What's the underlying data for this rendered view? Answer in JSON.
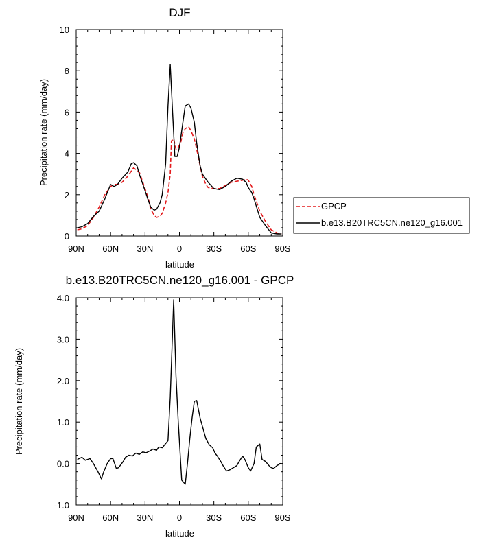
{
  "chart_data": [
    {
      "type": "line",
      "title": "DJF",
      "xlabel": "latitude",
      "ylabel": "Precipitation rate (mm/day)",
      "xlim": [
        90,
        -90
      ],
      "ylim": [
        0,
        10
      ],
      "xticks": [
        90,
        60,
        30,
        0,
        -30,
        -60,
        -90
      ],
      "xtick_labels": [
        "90N",
        "60N",
        "30N",
        "0",
        "30S",
        "60S",
        "90S"
      ],
      "yticks": [
        0,
        2,
        4,
        6,
        8,
        10
      ],
      "ytick_labels": [
        "0",
        "2",
        "4",
        "6",
        "8",
        "10"
      ],
      "legend_placement": "right",
      "series": [
        {
          "name": "GPCP",
          "color": "#e31a1c",
          "dash": "dashed",
          "x": [
            89,
            85,
            80,
            75,
            70,
            65,
            60,
            57,
            54,
            50,
            45,
            40,
            35,
            30,
            27,
            25,
            22,
            20,
            17,
            15,
            12,
            10,
            8,
            7,
            5,
            3,
            1,
            -1,
            -3,
            -5,
            -8,
            -10,
            -13,
            -15,
            -18,
            -20,
            -23,
            -25,
            -30,
            -35,
            -40,
            -45,
            -50,
            -55,
            -58,
            -60,
            -63,
            -65,
            -70,
            -75,
            -80,
            -85,
            -89
          ],
          "values": [
            0.3,
            0.35,
            0.5,
            0.9,
            1.4,
            2.0,
            2.4,
            2.5,
            2.5,
            2.6,
            2.9,
            3.3,
            3.1,
            2.3,
            1.8,
            1.3,
            1.0,
            0.9,
            0.95,
            1.1,
            1.6,
            2.1,
            3.0,
            4.6,
            4.7,
            4.2,
            4.3,
            4.5,
            5.0,
            5.2,
            5.3,
            5.1,
            4.7,
            4.2,
            3.4,
            2.9,
            2.5,
            2.35,
            2.3,
            2.3,
            2.45,
            2.6,
            2.65,
            2.7,
            2.75,
            2.7,
            2.4,
            2.0,
            1.2,
            0.7,
            0.3,
            0.15,
            0.1
          ]
        },
        {
          "name": "b.e13.B20TRC5CN.ne120_g16.001",
          "color": "#000000",
          "dash": "solid",
          "x": [
            89,
            85,
            80,
            75,
            70,
            65,
            60,
            57,
            54,
            50,
            45,
            42,
            40,
            37,
            35,
            30,
            27,
            25,
            22,
            20,
            17,
            15,
            12,
            10,
            8,
            6,
            4,
            2,
            0,
            -3,
            -5,
            -8,
            -10,
            -13,
            -15,
            -18,
            -20,
            -25,
            -30,
            -35,
            -40,
            -45,
            -50,
            -55,
            -58,
            -60,
            -63,
            -65,
            -70,
            -75,
            -80,
            -85,
            -89
          ],
          "values": [
            0.4,
            0.45,
            0.6,
            0.95,
            1.2,
            1.8,
            2.5,
            2.4,
            2.5,
            2.8,
            3.1,
            3.5,
            3.55,
            3.4,
            3.0,
            2.2,
            1.7,
            1.4,
            1.25,
            1.3,
            1.6,
            2.0,
            3.5,
            6.3,
            8.3,
            6.0,
            3.85,
            3.85,
            4.3,
            5.5,
            6.3,
            6.4,
            6.2,
            5.5,
            4.5,
            3.4,
            3.0,
            2.6,
            2.3,
            2.25,
            2.4,
            2.65,
            2.8,
            2.75,
            2.6,
            2.35,
            2.1,
            1.8,
            0.9,
            0.5,
            0.15,
            0.1,
            0.1
          ]
        }
      ]
    },
    {
      "type": "line",
      "title": "b.e13.B20TRC5CN.ne120_g16.001 - GPCP",
      "xlabel": "latitude",
      "ylabel": "Precipitation rate (mm/day)",
      "xlim": [
        90,
        -90
      ],
      "ylim": [
        -1,
        4
      ],
      "xticks": [
        90,
        60,
        30,
        0,
        -30,
        -60,
        -90
      ],
      "xtick_labels": [
        "90N",
        "60N",
        "30N",
        "0",
        "30S",
        "60S",
        "90S"
      ],
      "yticks": [
        -1,
        0,
        1,
        2,
        3,
        4
      ],
      "ytick_labels": [
        "-1.0",
        "0.0",
        "1.0",
        "2.0",
        "3.0",
        "4.0"
      ],
      "series": [
        {
          "color": "#000000",
          "dash": "solid",
          "x": [
            89,
            85,
            82,
            78,
            75,
            71,
            68,
            66,
            63,
            60,
            58,
            55,
            53,
            49,
            47,
            44,
            41,
            38,
            35,
            32,
            29,
            26,
            23,
            20,
            18,
            15,
            13,
            10,
            8,
            5,
            3,
            1,
            -2,
            -5,
            -7,
            -9,
            -11,
            -13,
            -15,
            -18,
            -20,
            -23,
            -26,
            -29,
            -31,
            -33,
            -36,
            -38,
            -41,
            -44,
            -47,
            -50,
            -52,
            -55,
            -57,
            -60,
            -62,
            -65,
            -67,
            -70,
            -72,
            -75,
            -78,
            -80,
            -82,
            -85,
            -88,
            -89
          ],
          "values": [
            0.1,
            0.15,
            0.08,
            0.12,
            0.0,
            -0.2,
            -0.37,
            -0.2,
            0.0,
            0.12,
            0.12,
            -0.12,
            -0.1,
            0.05,
            0.15,
            0.2,
            0.18,
            0.25,
            0.22,
            0.28,
            0.26,
            0.3,
            0.35,
            0.32,
            0.4,
            0.38,
            0.45,
            0.55,
            1.6,
            3.95,
            2.1,
            1.0,
            -0.4,
            -0.5,
            0.0,
            0.6,
            1.1,
            1.5,
            1.52,
            1.1,
            0.9,
            0.6,
            0.45,
            0.38,
            0.25,
            0.18,
            0.05,
            -0.05,
            -0.18,
            -0.15,
            -0.1,
            -0.05,
            0.05,
            0.18,
            0.1,
            -0.1,
            -0.18,
            0.0,
            0.4,
            0.47,
            0.1,
            0.05,
            -0.05,
            -0.1,
            -0.12,
            -0.05,
            0.0,
            -0.02
          ]
        }
      ]
    }
  ]
}
